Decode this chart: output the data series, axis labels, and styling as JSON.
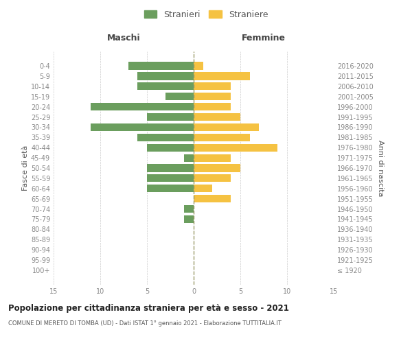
{
  "age_groups": [
    "100+",
    "95-99",
    "90-94",
    "85-89",
    "80-84",
    "75-79",
    "70-74",
    "65-69",
    "60-64",
    "55-59",
    "50-54",
    "45-49",
    "40-44",
    "35-39",
    "30-34",
    "25-29",
    "20-24",
    "15-19",
    "10-14",
    "5-9",
    "0-4"
  ],
  "birth_years": [
    "≤ 1920",
    "1921-1925",
    "1926-1930",
    "1931-1935",
    "1936-1940",
    "1941-1945",
    "1946-1950",
    "1951-1955",
    "1956-1960",
    "1961-1965",
    "1966-1970",
    "1971-1975",
    "1976-1980",
    "1981-1985",
    "1986-1990",
    "1991-1995",
    "1996-2000",
    "2001-2005",
    "2006-2010",
    "2011-2015",
    "2016-2020"
  ],
  "males": [
    0,
    0,
    0,
    0,
    0,
    1,
    1,
    0,
    5,
    5,
    5,
    1,
    5,
    6,
    11,
    5,
    11,
    3,
    6,
    6,
    7
  ],
  "females": [
    0,
    0,
    0,
    0,
    0,
    0,
    0,
    4,
    2,
    4,
    5,
    4,
    9,
    6,
    7,
    5,
    4,
    4,
    4,
    6,
    1
  ],
  "male_color": "#6b9e5e",
  "female_color": "#f5c242",
  "xlim": 15,
  "title": "Popolazione per cittadinanza straniera per età e sesso - 2021",
  "subtitle": "COMUNE DI MERETO DI TOMBA (UD) - Dati ISTAT 1° gennaio 2021 - Elaborazione TUTTITALIA.IT",
  "ylabel_left": "Fasce di età",
  "ylabel_right": "Anni di nascita",
  "legend_male": "Stranieri",
  "legend_female": "Straniere",
  "header_left": "Maschi",
  "header_right": "Femmine",
  "background_color": "#ffffff",
  "grid_color": "#cccccc",
  "bar_height": 0.75,
  "tick_label_color": "#888888",
  "axis_label_color": "#555555"
}
